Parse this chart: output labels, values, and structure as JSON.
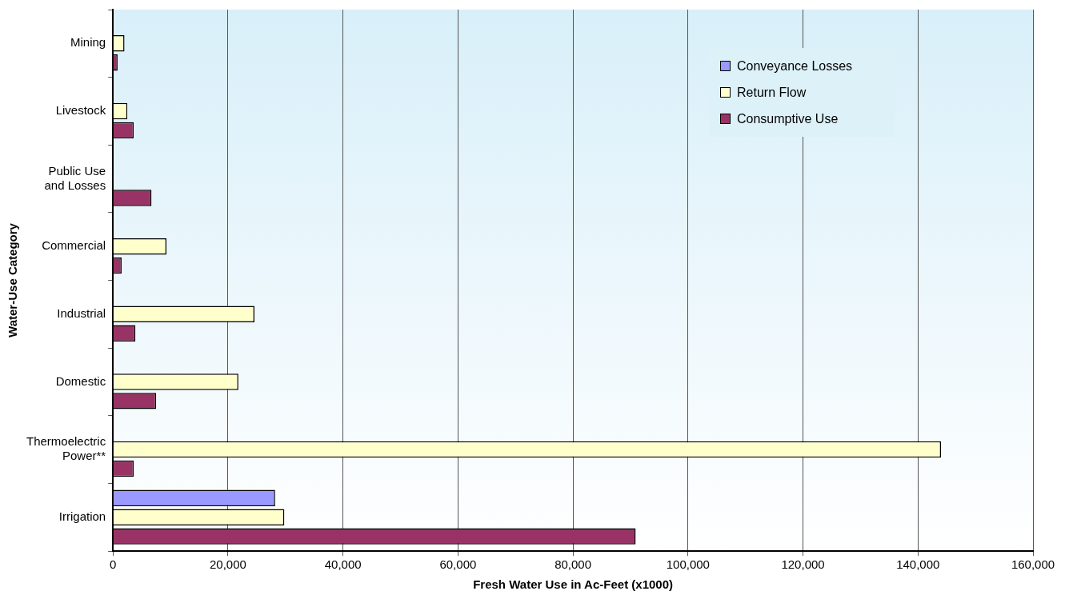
{
  "chart_data": {
    "type": "bar",
    "orientation": "horizontal",
    "xlabel": "Fresh Water Use in Ac-Feet (x1000)",
    "ylabel": "Water-Use Category",
    "categories": [
      "Mining",
      "Livestock",
      "Public Use\nand Losses",
      "Commercial",
      "Industrial",
      "Domestic",
      "Thermoelectric\nPower**",
      "Irrigation"
    ],
    "series": [
      {
        "name": "Conveyance Losses",
        "color": "#9999ff",
        "values": [
          null,
          null,
          null,
          null,
          null,
          null,
          null,
          28200
        ]
      },
      {
        "name": "Return Flow",
        "color": "#ffffcc",
        "values": [
          2000,
          2500,
          null,
          9300,
          24600,
          21800,
          144000,
          29800
        ]
      },
      {
        "name": "Consumptive Use",
        "color": "#993366",
        "values": [
          800,
          3600,
          6700,
          1500,
          3900,
          7500,
          3600,
          90900
        ]
      }
    ],
    "xlim": [
      0,
      160000
    ],
    "xticks": [
      0,
      {
        "value": 20000,
        "label": "20,000"
      },
      {
        "value": 40000,
        "label": "40,000"
      },
      {
        "value": 60000,
        "label": "60,000"
      },
      {
        "value": 80000,
        "label": "80,000"
      },
      {
        "value": 100000,
        "label": "100,000"
      },
      {
        "value": 120000,
        "label": "120,000"
      },
      {
        "value": 140000,
        "label": "140,000"
      },
      {
        "value": 160000,
        "label": "160,000"
      }
    ],
    "grid": "x",
    "legend": "top right"
  }
}
